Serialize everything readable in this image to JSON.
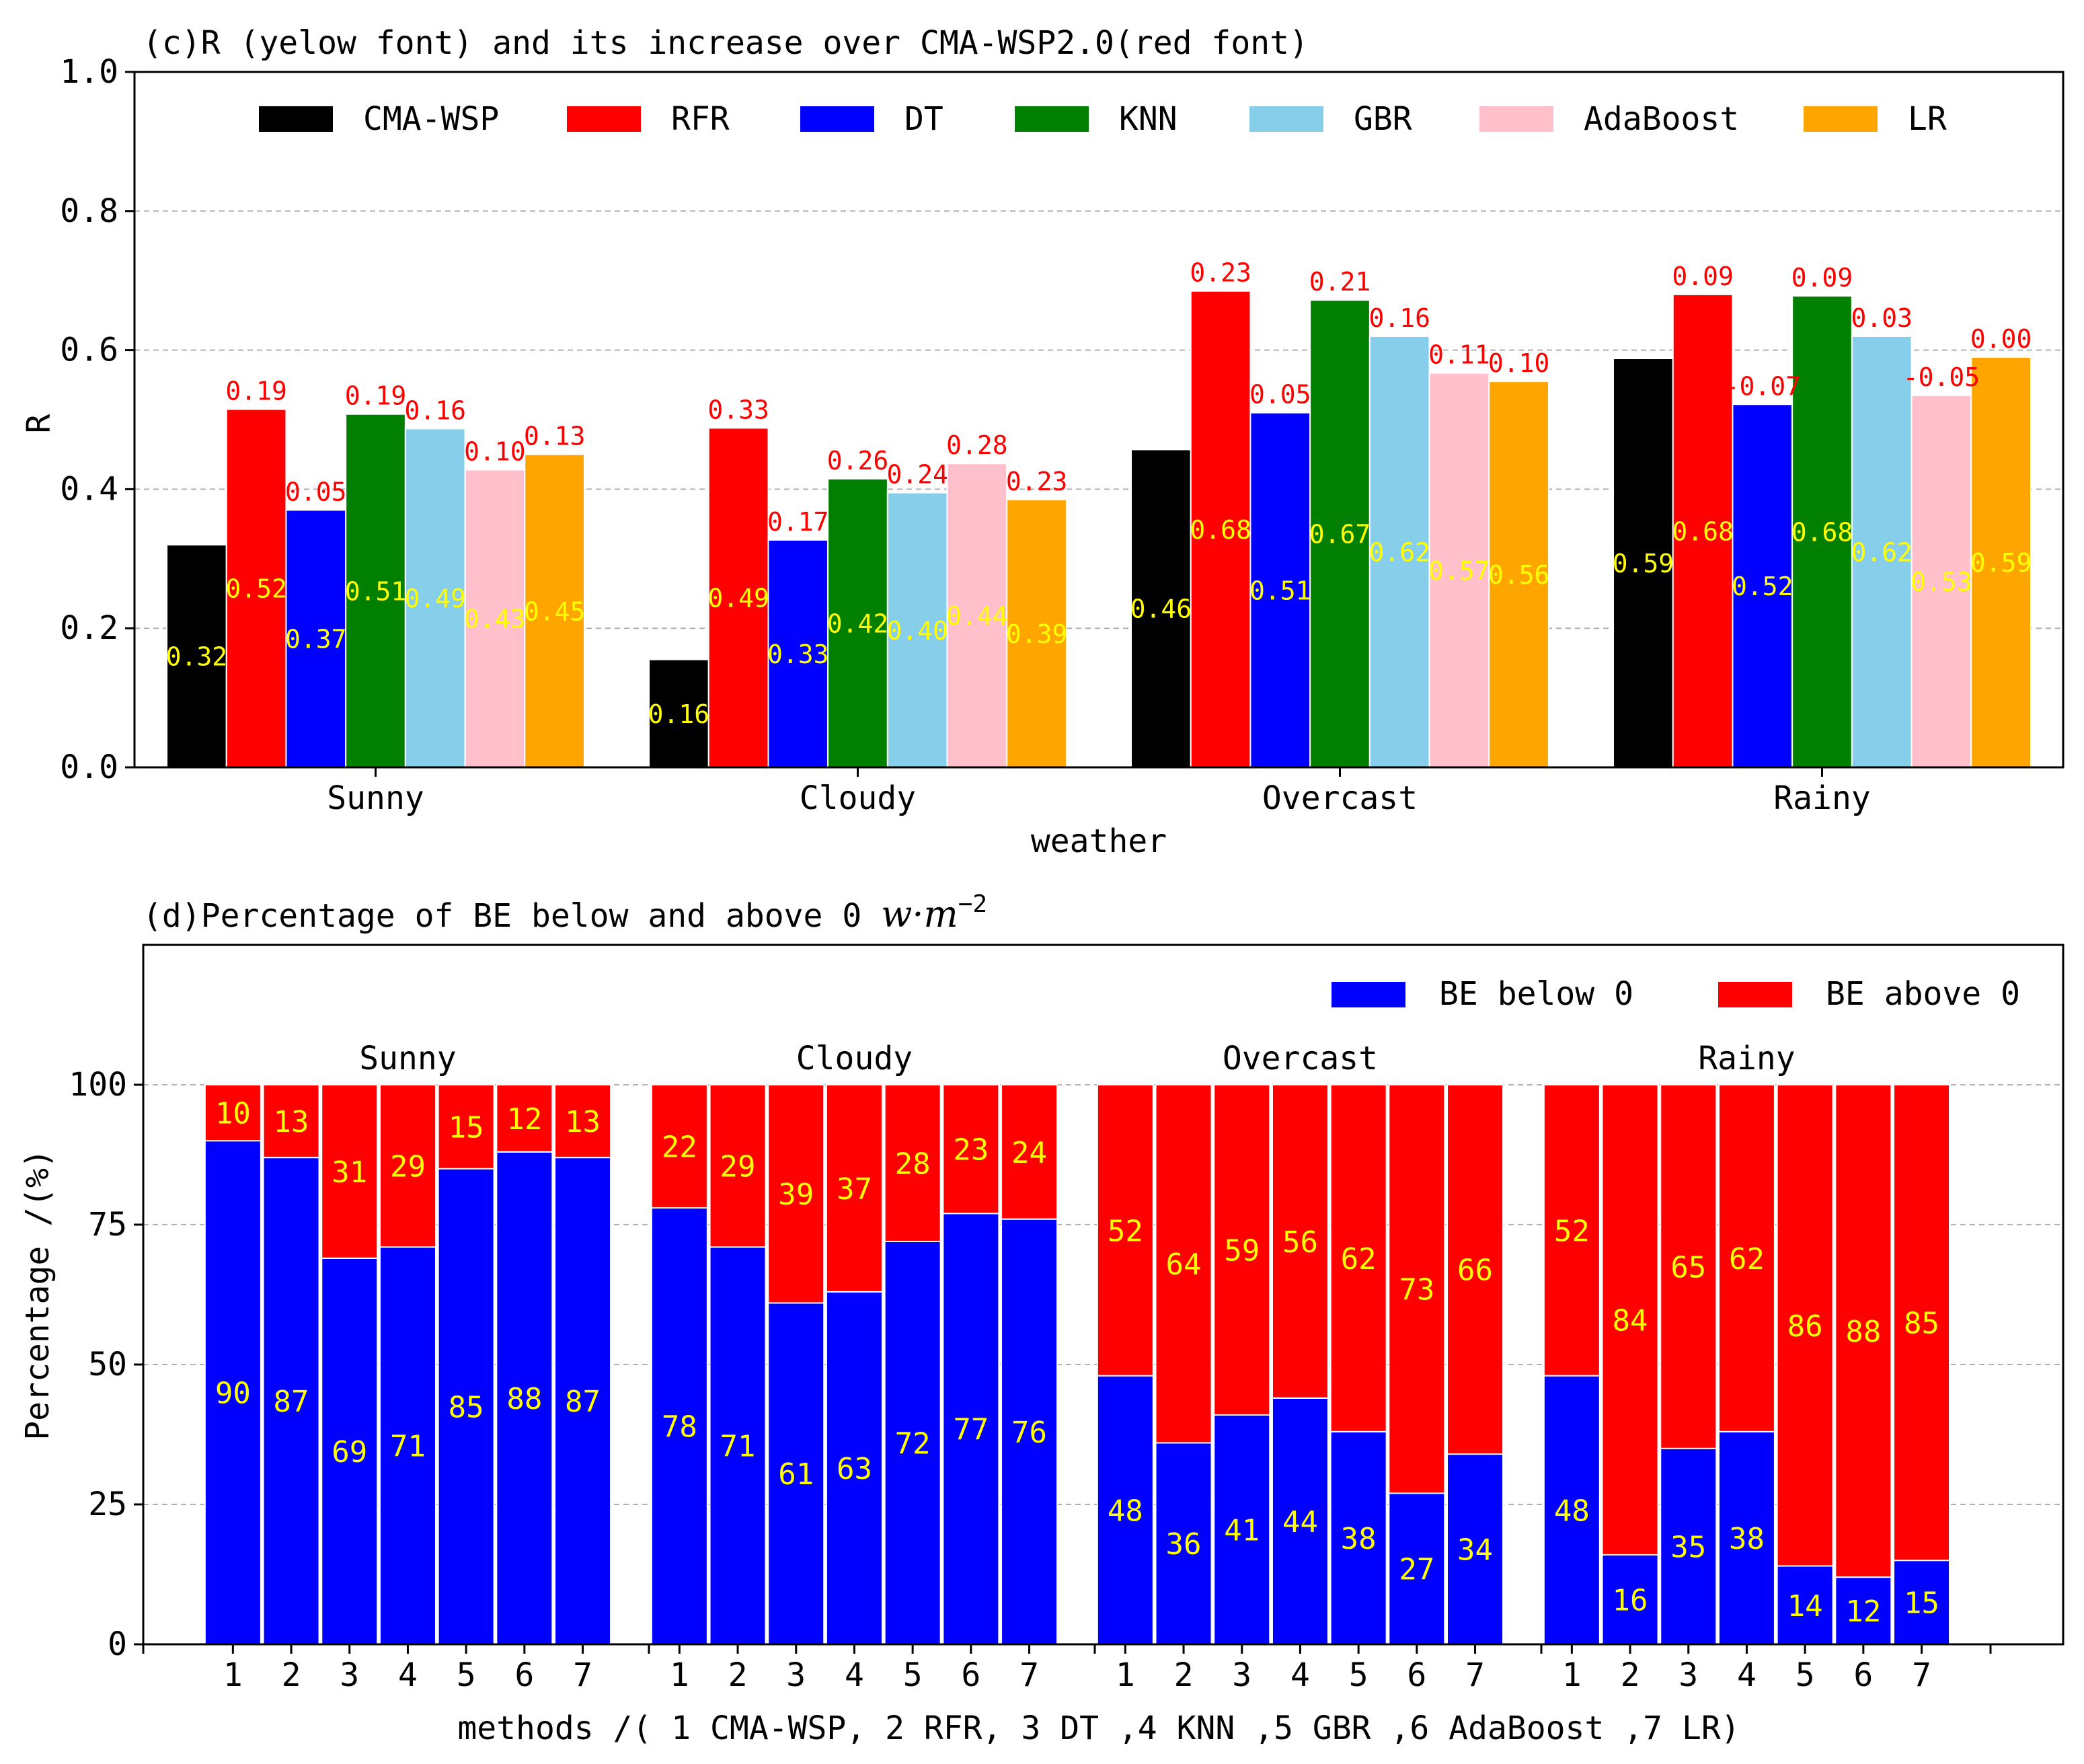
{
  "colors": {
    "CMA-WSP": "#000000",
    "RFR": "#ff0000",
    "DT": "#0000ff",
    "KNN": "#007f00",
    "GBR": "#87ceeb",
    "AdaBoost": "#ffc0cb",
    "LR": "#ffa500",
    "value_label": "#ffff00",
    "increase_label": "#ff0000",
    "be_below": "#0000ff",
    "be_above": "#ff0000"
  },
  "chart_data": [
    {
      "type": "bar",
      "title": "(c)R (yelow font) and its increase over CMA-WSP2.0(red font)",
      "xlabel": "weather",
      "ylabel": "R",
      "ylim": [
        0,
        1.0
      ],
      "yticks": [
        "0.0",
        "0.2",
        "0.4",
        "0.6",
        "0.8",
        "1.0"
      ],
      "grid": true,
      "legend_position": "top",
      "categories": [
        "Sunny",
        "Cloudy",
        "Overcast",
        "Rainy"
      ],
      "series": [
        {
          "name": "CMA-WSP",
          "values": [
            0.32,
            0.155,
            0.457,
            0.588
          ],
          "labels": [
            "0.32",
            "0.16",
            "0.46",
            "0.59"
          ],
          "increase": [
            "",
            "",
            "",
            ""
          ]
        },
        {
          "name": "RFR",
          "values": [
            0.515,
            0.488,
            0.685,
            0.68
          ],
          "labels": [
            "0.52",
            "0.49",
            "0.68",
            "0.68"
          ],
          "increase": [
            "0.19",
            "0.33",
            "0.23",
            "0.09"
          ]
        },
        {
          "name": "DT",
          "values": [
            0.37,
            0.327,
            0.51,
            0.522
          ],
          "labels": [
            "0.37",
            "0.33",
            "0.51",
            "0.52"
          ],
          "increase": [
            "0.05",
            "0.17",
            "0.05",
            "-0.07"
          ]
        },
        {
          "name": "KNN",
          "values": [
            0.508,
            0.415,
            0.672,
            0.678
          ],
          "labels": [
            "0.51",
            "0.42",
            "0.67",
            "0.68"
          ],
          "increase": [
            "0.19",
            "0.26",
            "0.21",
            "0.09"
          ]
        },
        {
          "name": "GBR",
          "values": [
            0.487,
            0.395,
            0.62,
            0.62
          ],
          "labels": [
            "0.49",
            "0.40",
            "0.62",
            "0.62"
          ],
          "increase": [
            "0.16",
            "0.24",
            "0.16",
            "0.03"
          ]
        },
        {
          "name": "AdaBoost",
          "values": [
            0.428,
            0.437,
            0.567,
            0.535
          ],
          "labels": [
            "0.43",
            "0.44",
            "0.57",
            "0.53"
          ],
          "increase": [
            "0.10",
            "0.28",
            "0.11",
            "-0.05"
          ]
        },
        {
          "name": "LR",
          "values": [
            0.45,
            0.385,
            0.555,
            0.59
          ],
          "labels": [
            "0.45",
            "0.39",
            "0.56",
            "0.59"
          ],
          "increase": [
            "0.13",
            "0.23",
            "0.10",
            "0.00"
          ]
        }
      ]
    },
    {
      "type": "bar",
      "stacked": true,
      "title_prefix": "(d)Percentage of BE below and above 0 ",
      "title_unit": "w·m",
      "title_unit_exp": "−2",
      "xlabel": "methods /( 1  CMA-WSP, 2  RFR, 3 DT ,4 KNN ,5 GBR ,6 AdaBoost ,7 LR)",
      "ylabel": "Percentage /(%)",
      "ylim": [
        0,
        125
      ],
      "yticks": [
        "0",
        "25",
        "50",
        "75",
        "100"
      ],
      "grid": true,
      "legend_position": "top-right",
      "method_ticks": [
        "1",
        "2",
        "3",
        "4",
        "5",
        "6",
        "7"
      ],
      "groups": [
        {
          "name": "Sunny",
          "below": [
            90,
            87,
            69,
            71,
            85,
            88,
            87
          ],
          "above": [
            10,
            13,
            31,
            29,
            15,
            12,
            13
          ]
        },
        {
          "name": "Cloudy",
          "below": [
            78,
            71,
            61,
            63,
            72,
            77,
            76
          ],
          "above": [
            22,
            29,
            39,
            37,
            28,
            23,
            24
          ]
        },
        {
          "name": "Overcast",
          "below": [
            48,
            36,
            41,
            44,
            38,
            27,
            34
          ],
          "above": [
            52,
            64,
            59,
            56,
            62,
            73,
            66
          ]
        },
        {
          "name": "Rainy",
          "below": [
            48,
            16,
            35,
            38,
            14,
            12,
            15
          ],
          "above": [
            52,
            84,
            65,
            62,
            86,
            88,
            85
          ]
        }
      ],
      "series": [
        {
          "name": "BE below 0",
          "key": "below"
        },
        {
          "name": "BE above 0",
          "key": "above"
        }
      ]
    }
  ]
}
